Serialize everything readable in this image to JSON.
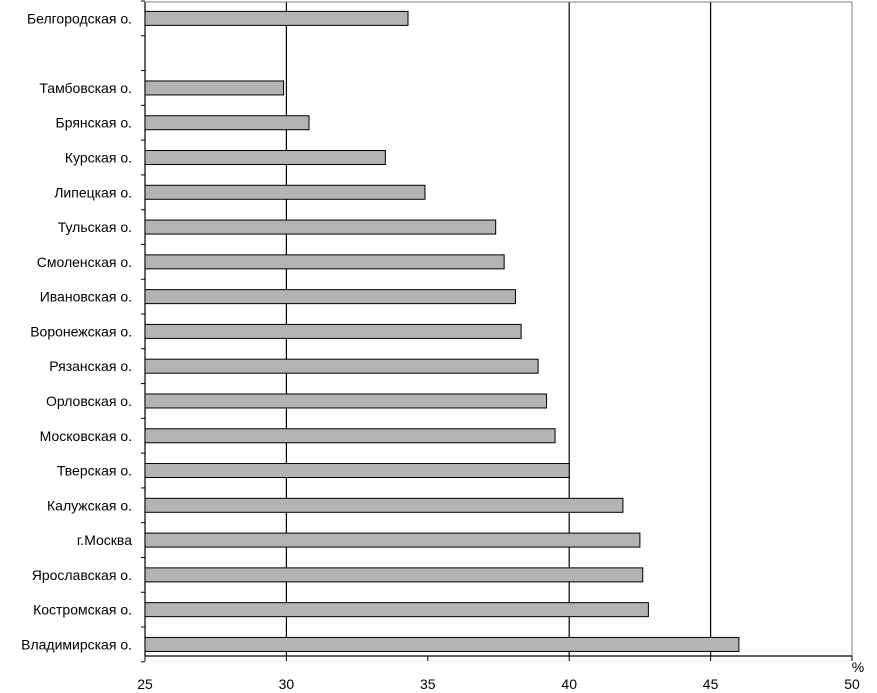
{
  "chart_data": {
    "type": "bar",
    "orientation": "horizontal",
    "categories": [
      "Белгородская о.",
      "",
      "Тамбовская о.",
      "Брянская о.",
      "Курская о.",
      "Липецкая о.",
      "Тульская о.",
      "Смоленская о.",
      "Ивановская о.",
      "Воронежская о.",
      "Рязанская о.",
      "Орловская о.",
      "Московская о.",
      "Тверская о.",
      "Калужская о.",
      "г.Москва",
      "Ярославская о.",
      "Костромская о.",
      "Владимирская о."
    ],
    "values": [
      34.3,
      null,
      29.9,
      30.8,
      33.5,
      34.9,
      37.4,
      37.7,
      38.1,
      38.3,
      38.9,
      39.2,
      39.5,
      40.0,
      41.9,
      42.5,
      42.6,
      42.8,
      46.0
    ],
    "xlim": [
      25,
      50
    ],
    "xticks": [
      "25",
      "30",
      "35",
      "40",
      "45",
      "50"
    ],
    "xtick_values": [
      25,
      30,
      35,
      40,
      45,
      50
    ],
    "gridlines": [
      30,
      40,
      45
    ],
    "unit": "%",
    "title": "",
    "xlabel": "",
    "ylabel": "",
    "legend": "none",
    "colors": {
      "bar_fill": "#b3b3b3",
      "bar_stroke": "#000000",
      "grid": "#000000",
      "axis": "#000000",
      "background": "#ffffff"
    }
  }
}
